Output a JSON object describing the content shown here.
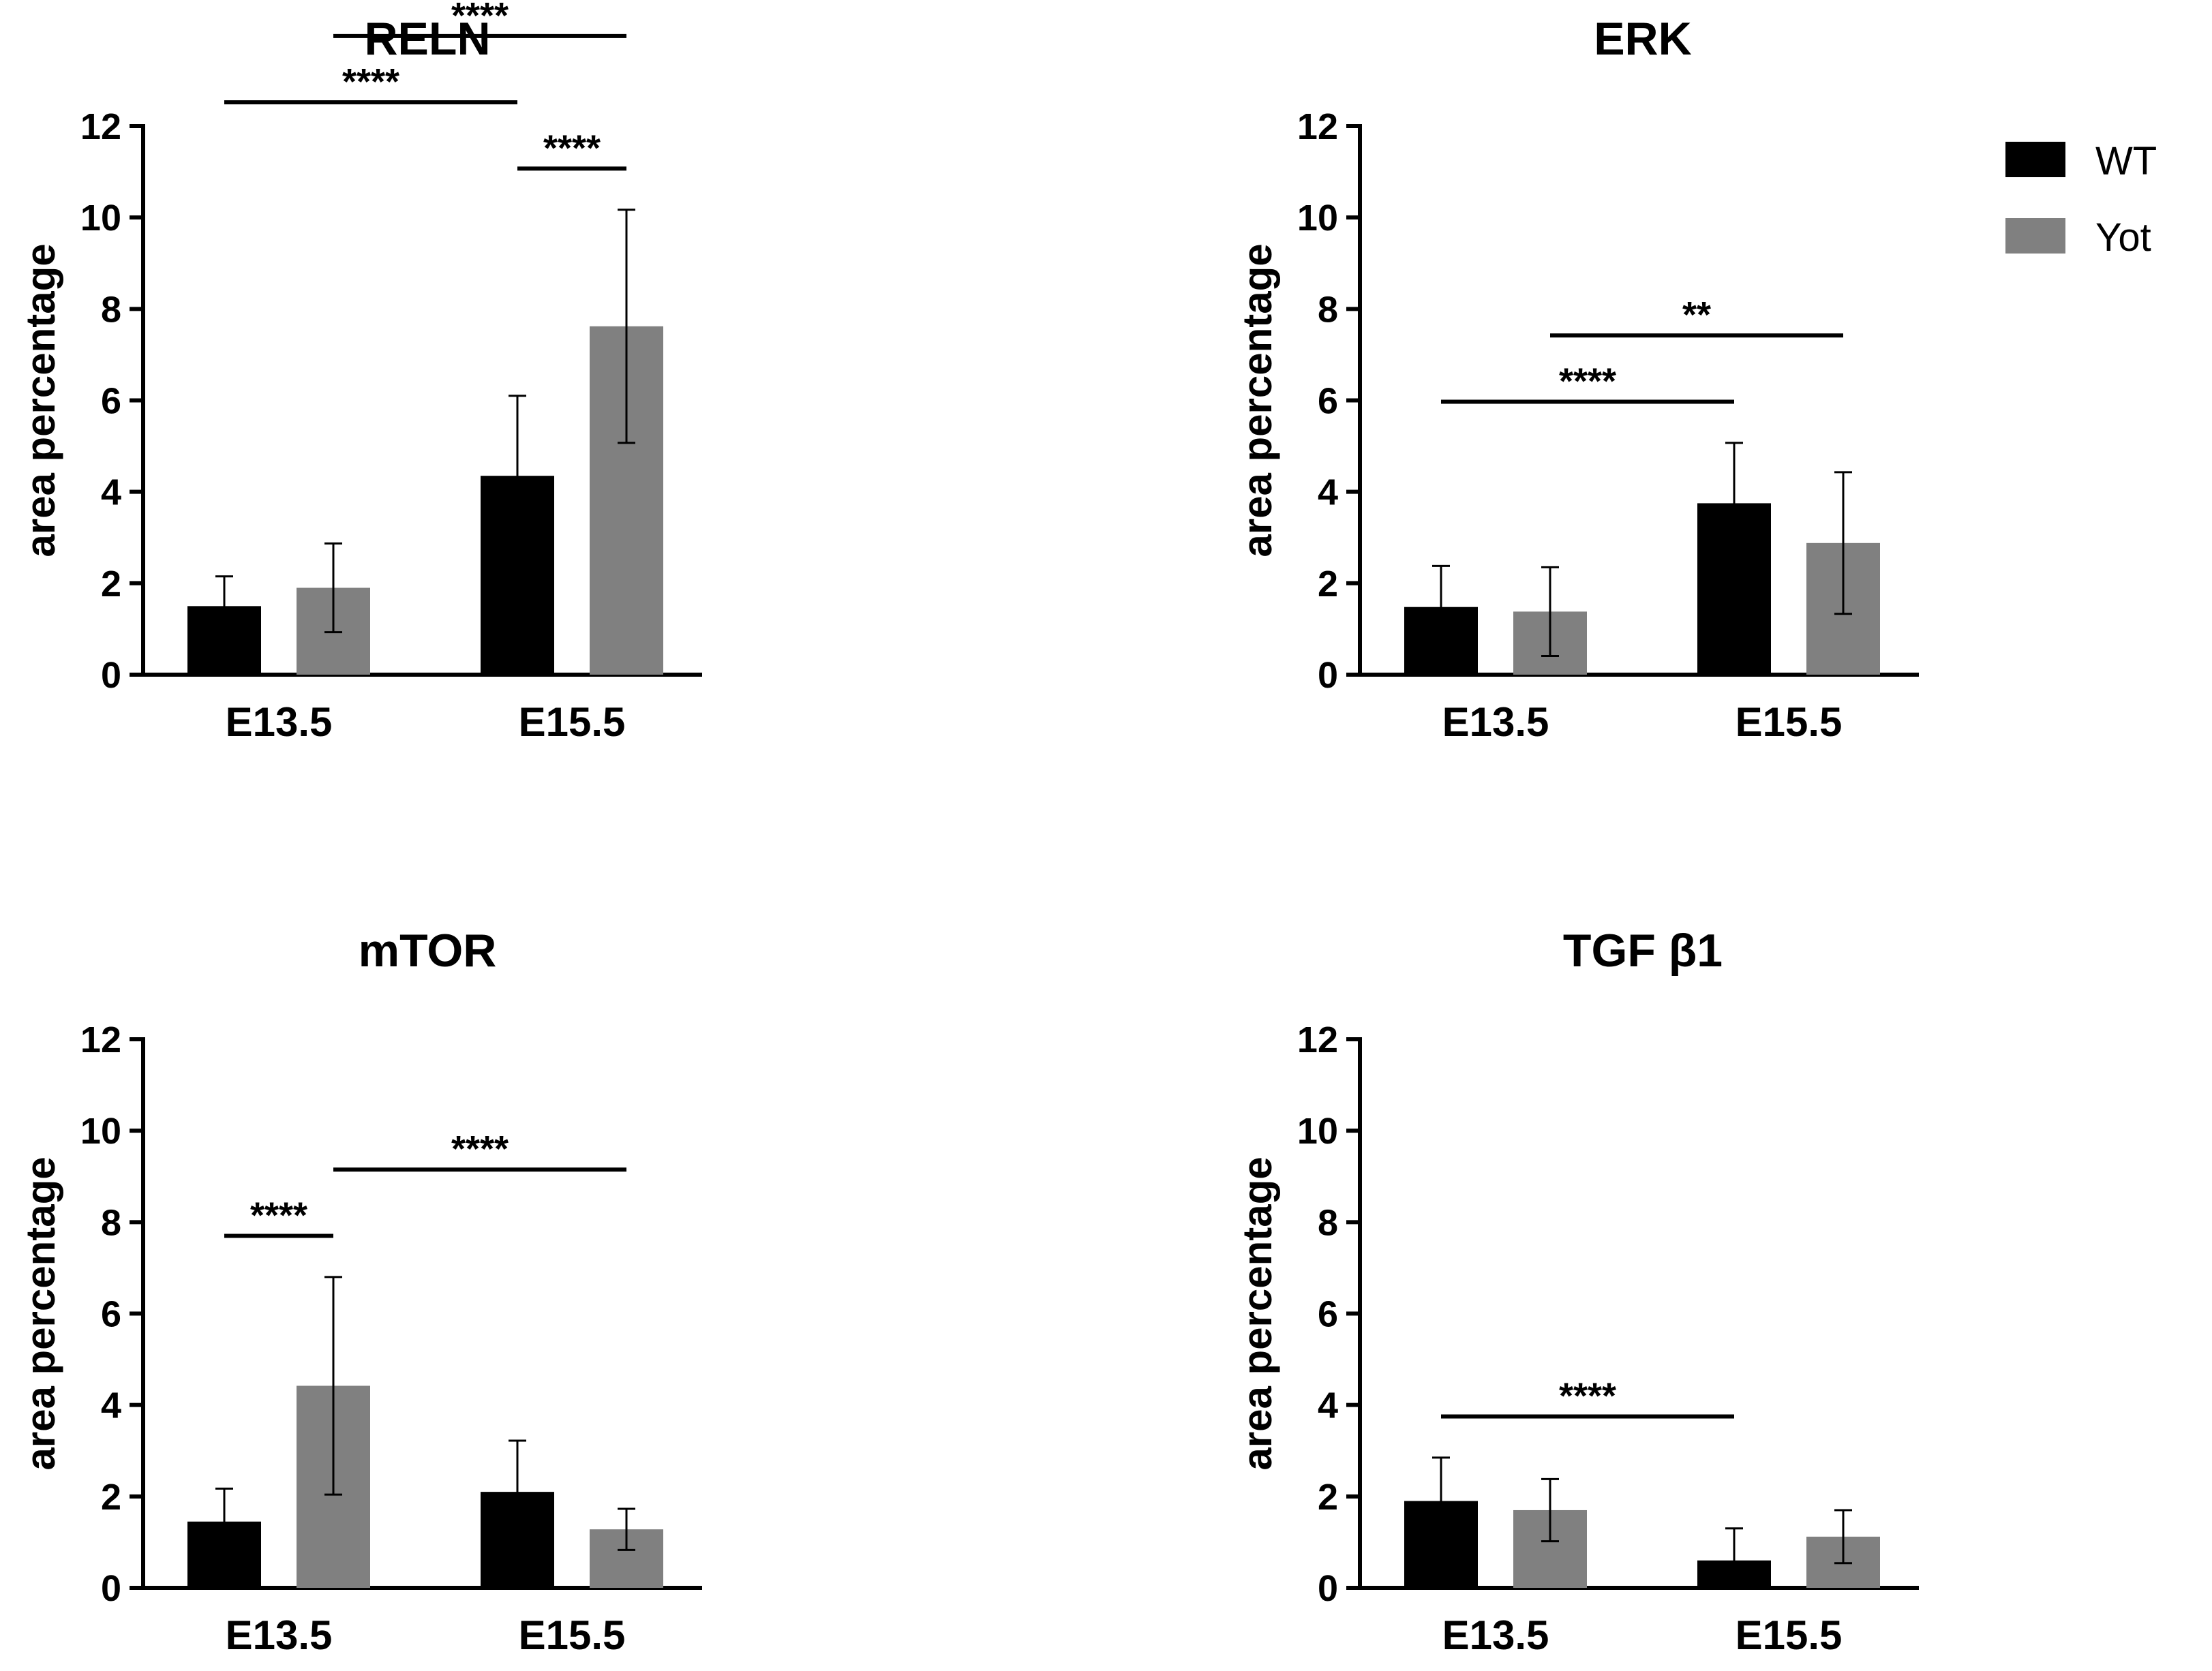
{
  "chart_data": [
    {
      "type": "bar",
      "title": "RELN",
      "ylabel": "area percentage",
      "xlabel": "",
      "ylim": [
        0,
        12
      ],
      "yticks": [
        0,
        2,
        4,
        6,
        8,
        10,
        12
      ],
      "categories": [
        "E13.5",
        "E15.5"
      ],
      "series": [
        {
          "name": "WT",
          "values": [
            1.5,
            4.35
          ],
          "errors": [
            0.65,
            1.75
          ]
        },
        {
          "name": "Yot",
          "values": [
            1.9,
            7.62
          ],
          "errors": [
            0.97,
            2.55
          ]
        }
      ],
      "significance": [
        {
          "label": "****",
          "from": [
            "E13.5",
            "WT"
          ],
          "to": [
            "E15.5",
            "WT"
          ]
        },
        {
          "label": "****",
          "from": [
            "E15.5",
            "WT"
          ],
          "to": [
            "E15.5",
            "Yot"
          ]
        },
        {
          "label": "****",
          "from": [
            "E13.5",
            "Yot"
          ],
          "to": [
            "E15.5",
            "Yot"
          ]
        }
      ]
    },
    {
      "type": "bar",
      "title": "ERK",
      "ylabel": "area percentage",
      "xlabel": "",
      "ylim": [
        0,
        12
      ],
      "yticks": [
        0,
        2,
        4,
        6,
        8,
        10,
        12
      ],
      "categories": [
        "E13.5",
        "E15.5"
      ],
      "series": [
        {
          "name": "WT",
          "values": [
            1.48,
            3.75
          ],
          "errors": [
            0.9,
            1.32
          ]
        },
        {
          "name": "Yot",
          "values": [
            1.38,
            2.88
          ],
          "errors": [
            0.97,
            1.55
          ]
        }
      ],
      "significance": [
        {
          "label": "****",
          "from": [
            "E13.5",
            "WT"
          ],
          "to": [
            "E15.5",
            "WT"
          ]
        },
        {
          "label": "**",
          "from": [
            "E13.5",
            "Yot"
          ],
          "to": [
            "E15.5",
            "Yot"
          ]
        }
      ]
    },
    {
      "type": "bar",
      "title": "mTOR",
      "ylabel": "area percentage",
      "xlabel": "",
      "ylim": [
        0,
        12
      ],
      "yticks": [
        0,
        2,
        4,
        6,
        8,
        10,
        12
      ],
      "categories": [
        "E13.5",
        "E15.5"
      ],
      "series": [
        {
          "name": "WT",
          "values": [
            1.45,
            2.1
          ],
          "errors": [
            0.72,
            1.12
          ]
        },
        {
          "name": "Yot",
          "values": [
            4.42,
            1.28
          ],
          "errors": [
            2.38,
            0.45
          ]
        }
      ],
      "significance": [
        {
          "label": "****",
          "from": [
            "E13.5",
            "WT"
          ],
          "to": [
            "E13.5",
            "Yot"
          ]
        },
        {
          "label": "****",
          "from": [
            "E13.5",
            "Yot"
          ],
          "to": [
            "E15.5",
            "Yot"
          ]
        }
      ]
    },
    {
      "type": "bar",
      "title": "TGF β1",
      "ylabel": "area percentage",
      "xlabel": "",
      "ylim": [
        0,
        12
      ],
      "yticks": [
        0,
        2,
        4,
        6,
        8,
        10,
        12
      ],
      "categories": [
        "E13.5",
        "E15.5"
      ],
      "series": [
        {
          "name": "WT",
          "values": [
            1.9,
            0.6
          ],
          "errors": [
            0.95,
            0.7
          ]
        },
        {
          "name": "Yot",
          "values": [
            1.7,
            1.12
          ],
          "errors": [
            0.68,
            0.58
          ]
        }
      ],
      "significance": [
        {
          "label": "****",
          "from": [
            "E13.5",
            "WT"
          ],
          "to": [
            "E15.5",
            "WT"
          ]
        }
      ]
    }
  ],
  "legend": {
    "placement": "top-right",
    "items": [
      {
        "label": "WT",
        "color": "#000000"
      },
      {
        "label": "Yot",
        "color": "#808080"
      }
    ]
  },
  "colors": {
    "WT": "#000000",
    "Yot": "#808080"
  }
}
